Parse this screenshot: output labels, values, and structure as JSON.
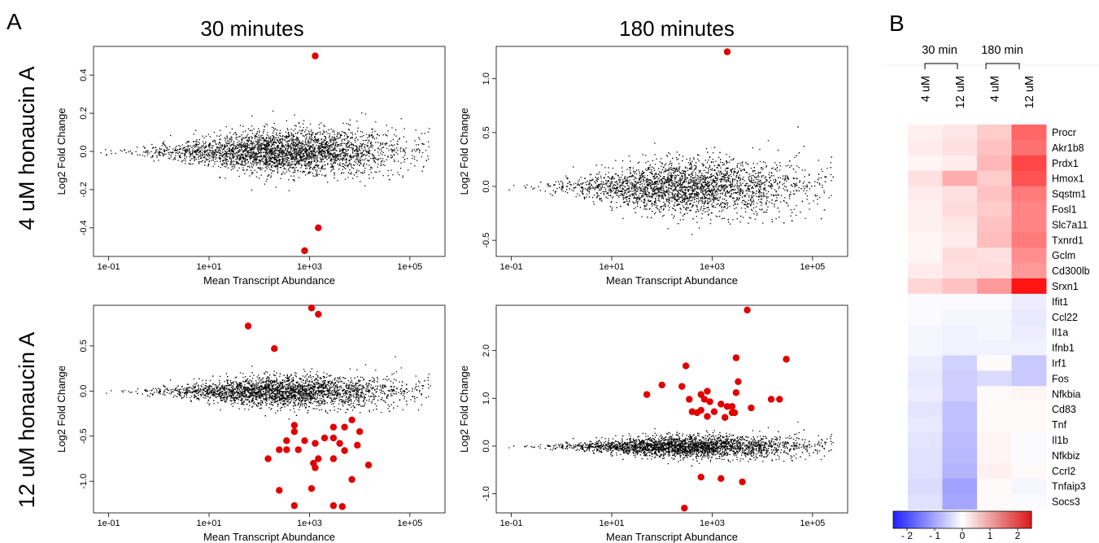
{
  "panel_labels": {
    "a": "A",
    "b": "B"
  },
  "col_titles": [
    "30 minutes",
    "180 minutes"
  ],
  "row_titles": [
    "4 uM honaucin A",
    "12 uM honaucin A"
  ],
  "colors": {
    "point": "#000000",
    "highlight": "#e00000",
    "hm_high": "#e00000",
    "hm_low": "#2020ff"
  },
  "chart_data": [
    {
      "type": "scatter",
      "title": "30 minutes",
      "xlabel": "Mean Transcript Abundance",
      "ylabel": "Log2 Fold Change",
      "x_scale": "log10",
      "xlim": [
        0.05,
        500000
      ],
      "ylim": [
        -0.55,
        0.55
      ],
      "x_ticks": [
        "1e-01",
        "1e+01",
        "1e+03",
        "1e+05"
      ],
      "y_ticks": [
        "-0.4",
        "-0.2",
        "0.0",
        "0.2",
        "0.4"
      ],
      "spread": 0.06,
      "highlight_points": [
        {
          "x": 1300,
          "y": 0.5
        },
        {
          "x": 1500,
          "y": -0.4
        },
        {
          "x": 800,
          "y": -0.52
        }
      ]
    },
    {
      "type": "scatter",
      "title": "180 minutes",
      "xlabel": "Mean Transcript Abundance",
      "ylabel": "Log2 Fold Change",
      "x_scale": "log10",
      "xlim": [
        0.05,
        500000
      ],
      "ylim": [
        -0.65,
        1.3
      ],
      "x_ticks": [
        "1e-01",
        "1e+01",
        "1e+03",
        "1e+05"
      ],
      "y_ticks": [
        "-0.5",
        "0.0",
        "0.5",
        "1.0"
      ],
      "spread": 0.13,
      "highlight_points": [
        {
          "x": 2000,
          "y": 1.25
        }
      ]
    },
    {
      "type": "scatter",
      "title": "30 minutes",
      "xlabel": "Mean Transcript Abundance",
      "ylabel": "Log2 Fold Change",
      "x_scale": "log10",
      "xlim": [
        0.05,
        500000
      ],
      "ylim": [
        -1.35,
        0.95
      ],
      "x_ticks": [
        "1e-01",
        "1e+01",
        "1e+03",
        "1e+05"
      ],
      "y_ticks": [
        "-1.0",
        "-0.5",
        "0.0",
        "0.5"
      ],
      "spread": 0.09,
      "highlight_points": [
        {
          "x": 1100,
          "y": 0.92
        },
        {
          "x": 1500,
          "y": 0.85
        },
        {
          "x": 60,
          "y": 0.72
        },
        {
          "x": 200,
          "y": 0.47
        },
        {
          "x": 500,
          "y": -0.38
        },
        {
          "x": 500,
          "y": -0.45
        },
        {
          "x": 3000,
          "y": -0.4
        },
        {
          "x": 5000,
          "y": -0.4
        },
        {
          "x": 7000,
          "y": -0.32
        },
        {
          "x": 2000,
          "y": -0.52
        },
        {
          "x": 3000,
          "y": -0.52
        },
        {
          "x": 10000,
          "y": -0.45
        },
        {
          "x": 350,
          "y": -0.55
        },
        {
          "x": 800,
          "y": -0.55
        },
        {
          "x": 1300,
          "y": -0.58
        },
        {
          "x": 4000,
          "y": -0.58
        },
        {
          "x": 9000,
          "y": -0.6
        },
        {
          "x": 350,
          "y": -0.65
        },
        {
          "x": 600,
          "y": -0.65
        },
        {
          "x": 250,
          "y": -0.65
        },
        {
          "x": 5000,
          "y": -0.66
        },
        {
          "x": 1500,
          "y": -0.75
        },
        {
          "x": 3000,
          "y": -0.75
        },
        {
          "x": 150,
          "y": -0.75
        },
        {
          "x": 1200,
          "y": -0.8
        },
        {
          "x": 15000,
          "y": -0.82
        },
        {
          "x": 7000,
          "y": -0.98
        },
        {
          "x": 1100,
          "y": -1.08
        },
        {
          "x": 250,
          "y": -1.1
        },
        {
          "x": 1300,
          "y": -0.85
        },
        {
          "x": 500,
          "y": -1.27
        },
        {
          "x": 3000,
          "y": -1.27
        },
        {
          "x": 4500,
          "y": -1.28
        }
      ]
    },
    {
      "type": "scatter",
      "title": "180 minutes",
      "xlabel": "Mean Transcript Abundance",
      "ylabel": "Log2 Fold Change",
      "x_scale": "log10",
      "xlim": [
        0.05,
        500000
      ],
      "ylim": [
        -1.4,
        2.95
      ],
      "x_ticks": [
        "1e-01",
        "1e+01",
        "1e+03",
        "1e+05"
      ],
      "y_ticks": [
        "-1.0",
        "0.0",
        "1.0",
        "2.0"
      ],
      "spread": 0.12,
      "highlight_points": [
        {
          "x": 5000,
          "y": 2.85
        },
        {
          "x": 30000,
          "y": 1.82
        },
        {
          "x": 3000,
          "y": 1.85
        },
        {
          "x": 300,
          "y": 1.68
        },
        {
          "x": 3300,
          "y": 1.35
        },
        {
          "x": 100,
          "y": 1.28
        },
        {
          "x": 250,
          "y": 1.25
        },
        {
          "x": 800,
          "y": 1.15
        },
        {
          "x": 3000,
          "y": 1.12
        },
        {
          "x": 50,
          "y": 1.08
        },
        {
          "x": 600,
          "y": 1.08
        },
        {
          "x": 350,
          "y": 0.98
        },
        {
          "x": 700,
          "y": 0.98
        },
        {
          "x": 15000,
          "y": 0.98
        },
        {
          "x": 22000,
          "y": 0.98
        },
        {
          "x": 900,
          "y": 0.93
        },
        {
          "x": 1500,
          "y": 0.88
        },
        {
          "x": 2000,
          "y": 0.83
        },
        {
          "x": 2500,
          "y": 0.83
        },
        {
          "x": 400,
          "y": 0.72
        },
        {
          "x": 1100,
          "y": 0.72
        },
        {
          "x": 2500,
          "y": 0.7
        },
        {
          "x": 600,
          "y": 0.75
        },
        {
          "x": 500,
          "y": 0.7
        },
        {
          "x": 2800,
          "y": 0.7
        },
        {
          "x": 6000,
          "y": 0.8
        },
        {
          "x": 1800,
          "y": 0.6
        },
        {
          "x": 800,
          "y": 0.62
        },
        {
          "x": 600,
          "y": -0.65
        },
        {
          "x": 1500,
          "y": -0.68
        },
        {
          "x": 4000,
          "y": -0.75
        },
        {
          "x": 280,
          "y": -1.3
        }
      ]
    },
    {
      "type": "heatmap",
      "group_labels": [
        "30 min",
        "180 min"
      ],
      "columns": [
        "4 uM",
        "12 uM",
        "4 uM",
        "12 uM"
      ],
      "rows": [
        "Procr",
        "Akr1b8",
        "Prdx1",
        "Hmox1",
        "Sqstm1",
        "Fosl1",
        "Slc7a11",
        "Txnrd1",
        "Gclm",
        "Cd300lb",
        "Srxn1",
        "Ifit1",
        "Ccl22",
        "Il1a",
        "Ifnb1",
        "Irf1",
        "Fos",
        "Nfkbia",
        "Cd83",
        "Tnf",
        "Il1b",
        "Nfkbiz",
        "Ccrl2",
        "Tnfaip3",
        "Socs3"
      ],
      "values": [
        [
          0.15,
          0.25,
          0.5,
          1.5
        ],
        [
          0.2,
          0.3,
          0.6,
          1.4
        ],
        [
          0.1,
          0.2,
          0.7,
          1.8
        ],
        [
          0.3,
          0.8,
          0.5,
          1.7
        ],
        [
          0.2,
          0.3,
          0.6,
          1.3
        ],
        [
          0.15,
          0.35,
          0.5,
          1.2
        ],
        [
          0.15,
          0.25,
          0.6,
          1.2
        ],
        [
          0.1,
          0.2,
          0.65,
          1.3
        ],
        [
          0.1,
          0.35,
          0.3,
          1.1
        ],
        [
          0.2,
          0.3,
          0.35,
          1.0
        ],
        [
          0.4,
          0.6,
          1.0,
          2.3
        ],
        [
          -0.05,
          -0.05,
          -0.05,
          -0.2
        ],
        [
          -0.05,
          -0.1,
          -0.1,
          -0.25
        ],
        [
          -0.1,
          -0.15,
          -0.1,
          -0.2
        ],
        [
          -0.1,
          -0.15,
          -0.15,
          -0.15
        ],
        [
          -0.2,
          -0.5,
          0.05,
          -0.6
        ],
        [
          -0.25,
          -0.55,
          -0.4,
          -0.6
        ],
        [
          -0.2,
          -0.55,
          0.05,
          0.1
        ],
        [
          -0.3,
          -0.7,
          0.05,
          0.05
        ],
        [
          -0.25,
          -0.7,
          0.05,
          0.05
        ],
        [
          -0.3,
          -0.75,
          0.1,
          -0.05
        ],
        [
          -0.35,
          -0.8,
          0.1,
          -0.05
        ],
        [
          -0.35,
          -0.85,
          0.15,
          0.05
        ],
        [
          -0.4,
          -1.05,
          0.05,
          -0.1
        ],
        [
          -0.35,
          -1.0,
          0.05,
          -0.05
        ]
      ],
      "scale_range": [
        -2.5,
        2.5
      ],
      "scale_ticks": [
        "- 2",
        "- 1",
        "0",
        "1",
        "2"
      ]
    }
  ]
}
